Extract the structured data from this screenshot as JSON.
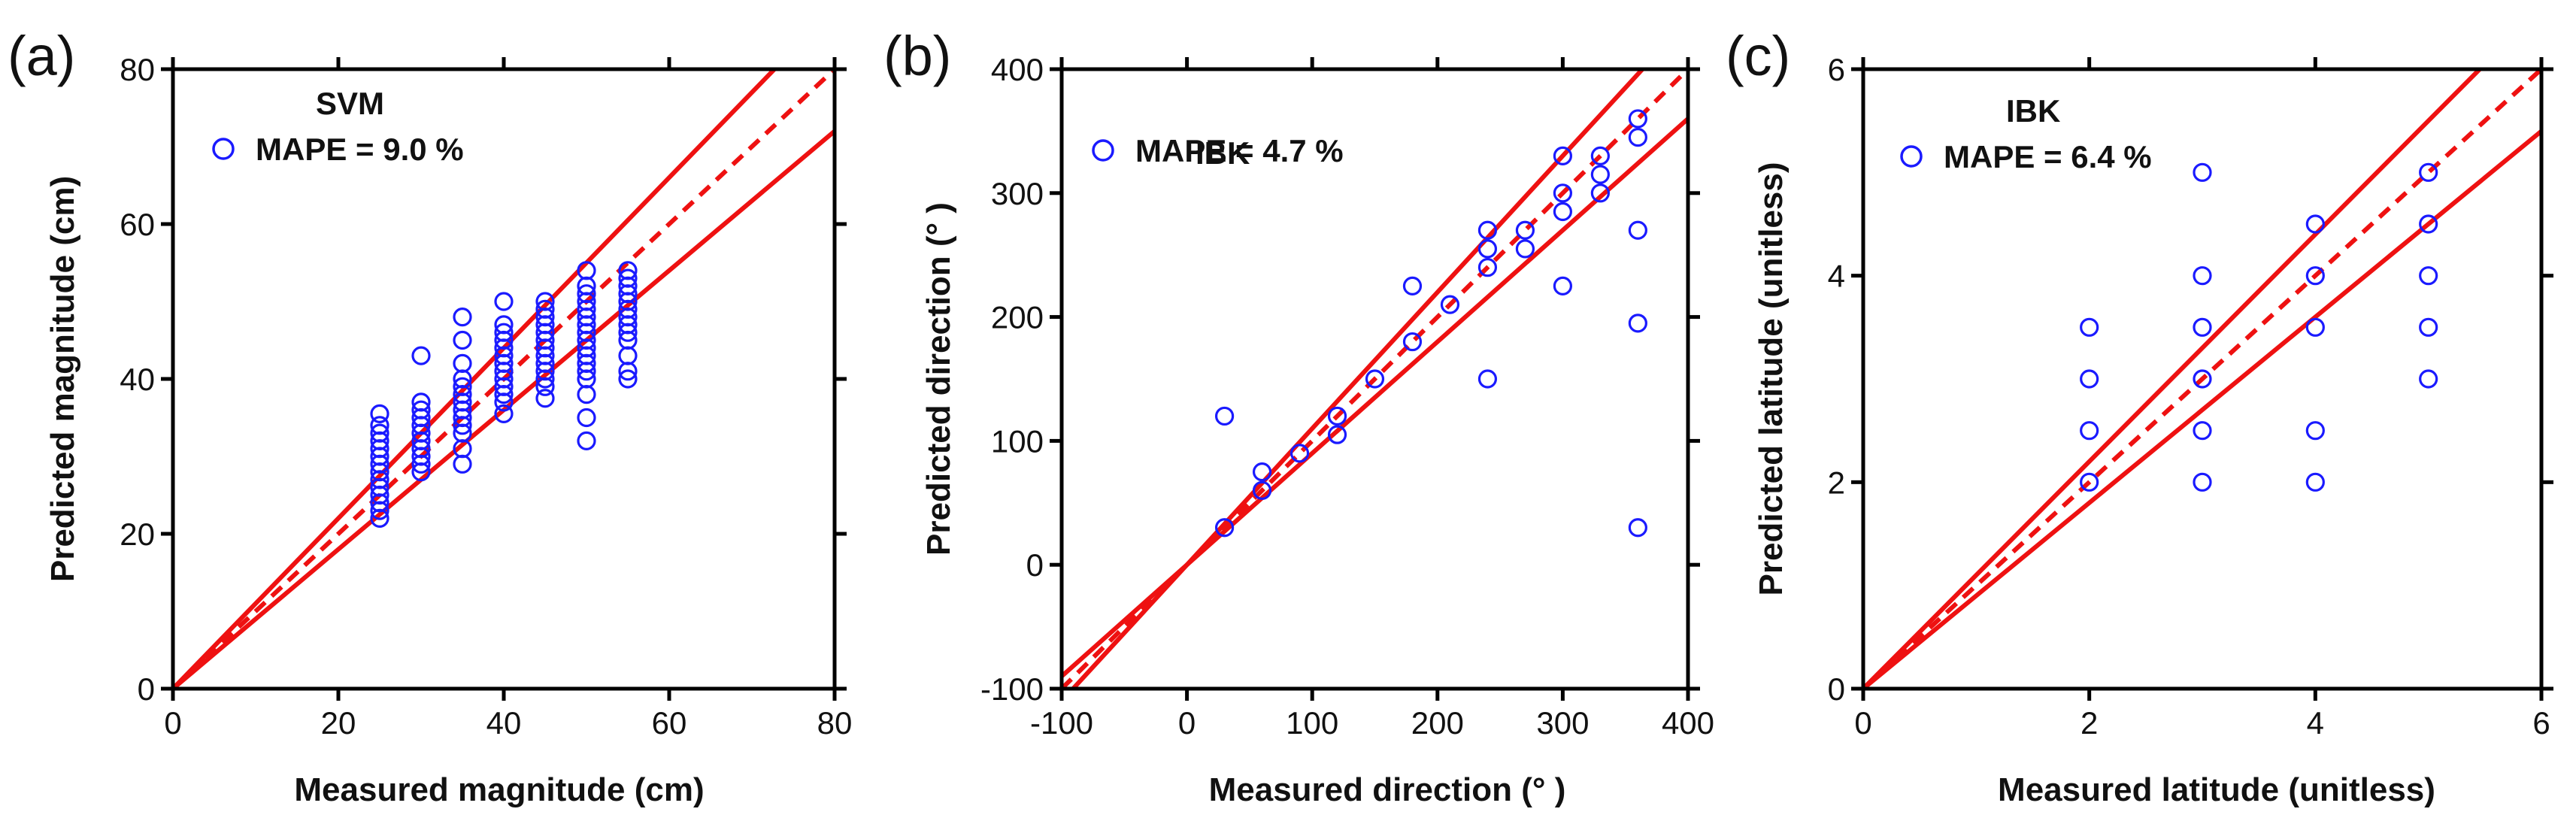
{
  "chart_data": [
    {
      "type": "scatter",
      "panel_label": "(a)",
      "model": "SVM",
      "legend_text": "MAPE = 9.0 %",
      "xlabel": "Measured magnitude (cm)",
      "ylabel": "Predicted magnitude (cm)",
      "xlim": [
        0,
        80
      ],
      "ylim": [
        0,
        80
      ],
      "xticks": [
        0,
        20,
        40,
        60,
        80
      ],
      "yticks": [
        0,
        20,
        40,
        60,
        80
      ],
      "xtick_labels": [
        "0",
        "20",
        "40",
        "60",
        "80"
      ],
      "ytick_labels": [
        "0",
        "20",
        "40",
        "60",
        "80"
      ],
      "reference_lines": {
        "identity_slope": 1,
        "upper_slope": 1.1,
        "lower_slope": 0.9
      },
      "points": [
        [
          25,
          22
        ],
        [
          25,
          23
        ],
        [
          25,
          24
        ],
        [
          25,
          25
        ],
        [
          25,
          26
        ],
        [
          25,
          27
        ],
        [
          25,
          28
        ],
        [
          25,
          29
        ],
        [
          25,
          30
        ],
        [
          25,
          31
        ],
        [
          25,
          32
        ],
        [
          25,
          33
        ],
        [
          25,
          34
        ],
        [
          25,
          35.5
        ],
        [
          30,
          28
        ],
        [
          30,
          29
        ],
        [
          30,
          30
        ],
        [
          30,
          31
        ],
        [
          30,
          32
        ],
        [
          30,
          33
        ],
        [
          30,
          34
        ],
        [
          30,
          35
        ],
        [
          30,
          36
        ],
        [
          30,
          37
        ],
        [
          30,
          43
        ],
        [
          35,
          29
        ],
        [
          35,
          31
        ],
        [
          35,
          33
        ],
        [
          35,
          34
        ],
        [
          35,
          35
        ],
        [
          35,
          36
        ],
        [
          35,
          37
        ],
        [
          35,
          38
        ],
        [
          35,
          39
        ],
        [
          35,
          40
        ],
        [
          35,
          42
        ],
        [
          35,
          45
        ],
        [
          35,
          48
        ],
        [
          40,
          35.5
        ],
        [
          40,
          37
        ],
        [
          40,
          38
        ],
        [
          40,
          39
        ],
        [
          40,
          40
        ],
        [
          40,
          41
        ],
        [
          40,
          42
        ],
        [
          40,
          43
        ],
        [
          40,
          44
        ],
        [
          40,
          45
        ],
        [
          40,
          46
        ],
        [
          40,
          47
        ],
        [
          40,
          50
        ],
        [
          45,
          37.5
        ],
        [
          45,
          39
        ],
        [
          45,
          40
        ],
        [
          45,
          41
        ],
        [
          45,
          42
        ],
        [
          45,
          43
        ],
        [
          45,
          44
        ],
        [
          45,
          45
        ],
        [
          45,
          46
        ],
        [
          45,
          47
        ],
        [
          45,
          48
        ],
        [
          45,
          49
        ],
        [
          45,
          50
        ],
        [
          50,
          32
        ],
        [
          50,
          35
        ],
        [
          50,
          38
        ],
        [
          50,
          40
        ],
        [
          50,
          41
        ],
        [
          50,
          42
        ],
        [
          50,
          43
        ],
        [
          50,
          44
        ],
        [
          50,
          45
        ],
        [
          50,
          46
        ],
        [
          50,
          47
        ],
        [
          50,
          48
        ],
        [
          50,
          49
        ],
        [
          50,
          50
        ],
        [
          50,
          51
        ],
        [
          50,
          52
        ],
        [
          50,
          54
        ],
        [
          55,
          40
        ],
        [
          55,
          41
        ],
        [
          55,
          43
        ],
        [
          55,
          45
        ],
        [
          55,
          46
        ],
        [
          55,
          47
        ],
        [
          55,
          48
        ],
        [
          55,
          49
        ],
        [
          55,
          50
        ],
        [
          55,
          51
        ],
        [
          55,
          52
        ],
        [
          55,
          53
        ],
        [
          55,
          54
        ]
      ]
    },
    {
      "type": "scatter",
      "panel_label": "(b)",
      "model": "IBK",
      "legend_text": "MAPE = 4.7 %",
      "xlabel": "Measured direction (°  )",
      "ylabel": "Predicted direction (°  )",
      "xlim": [
        -100,
        400
      ],
      "ylim": [
        -100,
        400
      ],
      "xticks": [
        -100,
        0,
        100,
        200,
        300,
        400
      ],
      "yticks": [
        -100,
        0,
        100,
        200,
        300,
        400
      ],
      "xtick_labels": [
        "-100",
        "0",
        "100",
        "200",
        "300",
        "400"
      ],
      "ytick_labels": [
        "-100",
        "0",
        "100",
        "200",
        "300",
        "400"
      ],
      "reference_lines": {
        "identity_slope": 1,
        "upper_slope": 1.1,
        "lower_slope": 0.9
      },
      "points": [
        [
          30,
          30
        ],
        [
          30,
          120
        ],
        [
          60,
          60
        ],
        [
          60,
          75
        ],
        [
          90,
          90
        ],
        [
          120,
          105
        ],
        [
          120,
          120
        ],
        [
          150,
          150
        ],
        [
          180,
          180
        ],
        [
          180,
          225
        ],
        [
          210,
          210
        ],
        [
          240,
          150
        ],
        [
          240,
          240
        ],
        [
          240,
          255
        ],
        [
          240,
          270
        ],
        [
          270,
          255
        ],
        [
          270,
          270
        ],
        [
          300,
          225
        ],
        [
          300,
          285
        ],
        [
          300,
          300
        ],
        [
          300,
          330
        ],
        [
          330,
          300
        ],
        [
          330,
          315
        ],
        [
          330,
          330
        ],
        [
          360,
          30
        ],
        [
          360,
          195
        ],
        [
          360,
          270
        ],
        [
          360,
          345
        ],
        [
          360,
          360
        ]
      ]
    },
    {
      "type": "scatter",
      "panel_label": "(c)",
      "model": "IBK",
      "legend_text": "MAPE = 6.4 %",
      "xlabel": "Measured latitude (unitless)",
      "ylabel": "Predicted latitude (unitless)",
      "xlim": [
        0,
        6
      ],
      "ylim": [
        0,
        6
      ],
      "xticks": [
        0,
        2,
        4,
        6
      ],
      "yticks": [
        0,
        2,
        4,
        6
      ],
      "xtick_labels": [
        "0",
        "2",
        "4",
        "6"
      ],
      "ytick_labels": [
        "0",
        "2",
        "4",
        "6"
      ],
      "reference_lines": {
        "identity_slope": 1,
        "upper_slope": 1.1,
        "lower_slope": 0.9
      },
      "points": [
        [
          2,
          2
        ],
        [
          2,
          2.5
        ],
        [
          2,
          3
        ],
        [
          2,
          3.5
        ],
        [
          3,
          2
        ],
        [
          3,
          2.5
        ],
        [
          3,
          3
        ],
        [
          3,
          3.5
        ],
        [
          3,
          4
        ],
        [
          3,
          5
        ],
        [
          4,
          2
        ],
        [
          4,
          2.5
        ],
        [
          4,
          3.5
        ],
        [
          4,
          4
        ],
        [
          4,
          4.5
        ],
        [
          5,
          3
        ],
        [
          5,
          3.5
        ],
        [
          5,
          4
        ],
        [
          5,
          4.5
        ],
        [
          5,
          5
        ]
      ]
    }
  ],
  "colors": {
    "points": "#1a1aff",
    "lines": "#ee1111",
    "axes": "#000000",
    "text": "#111111"
  }
}
